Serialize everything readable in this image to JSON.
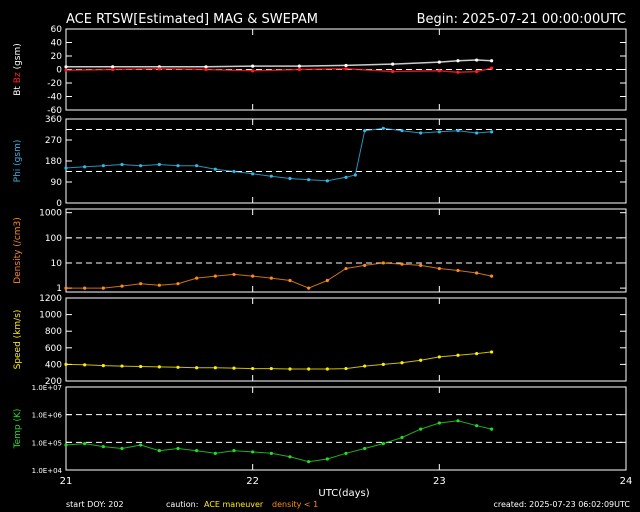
{
  "header": {
    "title": "ACE RTSW[Estimated] MAG & SWEPAM",
    "begin": "Begin: 2025-07-21 00:00:00UTC"
  },
  "footer": {
    "start_doy": "start DOY: 202",
    "caution_label": "caution:",
    "caution_maneuver": "ACE maneuver",
    "caution_density": "density < 1",
    "created": "created: 2025-07-23 06:02:09UTC"
  },
  "colors": {
    "background": "#000000",
    "axes": "#ffffff",
    "bt": "#ffffff",
    "bz": "#ff2020",
    "phi": "#30b8e8",
    "density": "#ff8c1a",
    "speed": "#ffee00",
    "temp": "#22dd22"
  },
  "chart_data": [
    {
      "type": "line",
      "panel": "Bt/Bz",
      "ylabel_parts": [
        "Bt",
        "Bz",
        "(gsm)"
      ],
      "ylim": [
        -60,
        60
      ],
      "yticks": [
        -60,
        -40,
        -20,
        0,
        20,
        40,
        60
      ],
      "ytick_labels": [
        "-60",
        "-40",
        "-20",
        "0",
        "20",
        "40",
        "60"
      ],
      "ref_lines": [
        0
      ],
      "x": [
        21.0,
        21.25,
        21.5,
        21.75,
        22.0,
        22.25,
        22.5,
        22.75,
        23.0,
        23.1,
        23.2,
        23.28
      ],
      "series": [
        {
          "name": "Bt",
          "color_key": "bt",
          "values": [
            4,
            4,
            4,
            4,
            5,
            5,
            6,
            8,
            11,
            13,
            14,
            13
          ]
        },
        {
          "name": "Bz",
          "color_key": "bz",
          "values": [
            -1,
            0,
            1,
            0,
            -2,
            0,
            1,
            -3,
            -2,
            -4,
            -3,
            2
          ]
        }
      ]
    },
    {
      "type": "scatter",
      "panel": "Phi",
      "ylabel_parts": [
        "Phi",
        "(gsm)"
      ],
      "ylim": [
        0,
        360
      ],
      "yticks": [
        0,
        90,
        180,
        270,
        360
      ],
      "ytick_labels": [
        "0",
        "90",
        "180",
        "270",
        "360"
      ],
      "ref_lines": [
        135,
        315
      ],
      "series": [
        {
          "name": "Phi",
          "color_key": "phi",
          "x": [
            21.0,
            21.1,
            21.2,
            21.3,
            21.4,
            21.5,
            21.6,
            21.7,
            21.8,
            21.9,
            22.0,
            22.1,
            22.2,
            22.3,
            22.4,
            22.5,
            22.55,
            22.6,
            22.7,
            22.8,
            22.9,
            23.0,
            23.1,
            23.2,
            23.28
          ],
          "values": [
            150,
            155,
            160,
            165,
            160,
            165,
            160,
            160,
            145,
            135,
            125,
            115,
            105,
            100,
            95,
            110,
            120,
            310,
            320,
            310,
            300,
            305,
            310,
            300,
            305
          ]
        }
      ]
    },
    {
      "type": "scatter",
      "panel": "Density",
      "ylabel_parts": [
        "Density",
        "(/cm3)"
      ],
      "log": true,
      "ylim": [
        0.7,
        1400
      ],
      "yticks": [
        1,
        10,
        100,
        1000
      ],
      "ytick_labels": [
        "1",
        "10",
        "100",
        "1000"
      ],
      "ref_lines": [
        10,
        100
      ],
      "series": [
        {
          "name": "Density",
          "color_key": "density",
          "x": [
            21.0,
            21.1,
            21.2,
            21.3,
            21.4,
            21.5,
            21.6,
            21.7,
            21.8,
            21.9,
            22.0,
            22.1,
            22.2,
            22.3,
            22.4,
            22.5,
            22.6,
            22.7,
            22.8,
            22.9,
            23.0,
            23.1,
            23.2,
            23.28
          ],
          "values": [
            1,
            1,
            1,
            1.2,
            1.5,
            1.3,
            1.5,
            2.5,
            3,
            3.5,
            3,
            2.5,
            2,
            1,
            2,
            6,
            8,
            10,
            9,
            8,
            6,
            5,
            4,
            3
          ]
        }
      ]
    },
    {
      "type": "scatter",
      "panel": "Speed",
      "ylabel_parts": [
        "Speed",
        "(km/s)"
      ],
      "ylim": [
        200,
        1200
      ],
      "yticks": [
        200,
        400,
        600,
        800,
        1000,
        1200
      ],
      "ytick_labels": [
        "200",
        "400",
        "600",
        "800",
        "1000",
        "1200"
      ],
      "ref_lines": [],
      "series": [
        {
          "name": "Speed",
          "color_key": "speed",
          "x": [
            21.0,
            21.1,
            21.2,
            21.3,
            21.4,
            21.5,
            21.6,
            21.7,
            21.8,
            21.9,
            22.0,
            22.1,
            22.2,
            22.3,
            22.4,
            22.5,
            22.6,
            22.7,
            22.8,
            22.9,
            23.0,
            23.1,
            23.2,
            23.28
          ],
          "values": [
            400,
            395,
            385,
            380,
            375,
            370,
            365,
            360,
            360,
            355,
            350,
            350,
            345,
            345,
            345,
            350,
            380,
            400,
            420,
            450,
            490,
            510,
            530,
            550
          ]
        }
      ]
    },
    {
      "type": "scatter",
      "panel": "Temp",
      "ylabel_parts": [
        "Temp",
        "(K)"
      ],
      "log": true,
      "ylim": [
        10000,
        10000000
      ],
      "yticks": [
        10000,
        100000,
        1000000,
        10000000
      ],
      "ytick_labels": [
        "1.0E+04",
        "1.0E+05",
        "1.0E+06",
        "1.0E+07"
      ],
      "ref_lines": [
        100000,
        1000000
      ],
      "series": [
        {
          "name": "Temp",
          "color_key": "temp",
          "x": [
            21.0,
            21.1,
            21.2,
            21.3,
            21.4,
            21.5,
            21.6,
            21.7,
            21.8,
            21.9,
            22.0,
            22.1,
            22.2,
            22.3,
            22.4,
            22.5,
            22.6,
            22.7,
            22.8,
            22.9,
            23.0,
            23.1,
            23.2,
            23.28
          ],
          "values": [
            80000,
            90000,
            70000,
            60000,
            80000,
            50000,
            60000,
            50000,
            40000,
            50000,
            45000,
            40000,
            30000,
            20000,
            25000,
            40000,
            60000,
            90000,
            150000,
            300000,
            500000,
            600000,
            400000,
            300000
          ]
        }
      ]
    }
  ],
  "x_axis": {
    "xlim": [
      21,
      24
    ],
    "ticks": [
      21,
      22,
      23,
      24
    ],
    "tick_labels": [
      "21",
      "22",
      "23",
      "24"
    ],
    "label": "UTC(days)"
  }
}
